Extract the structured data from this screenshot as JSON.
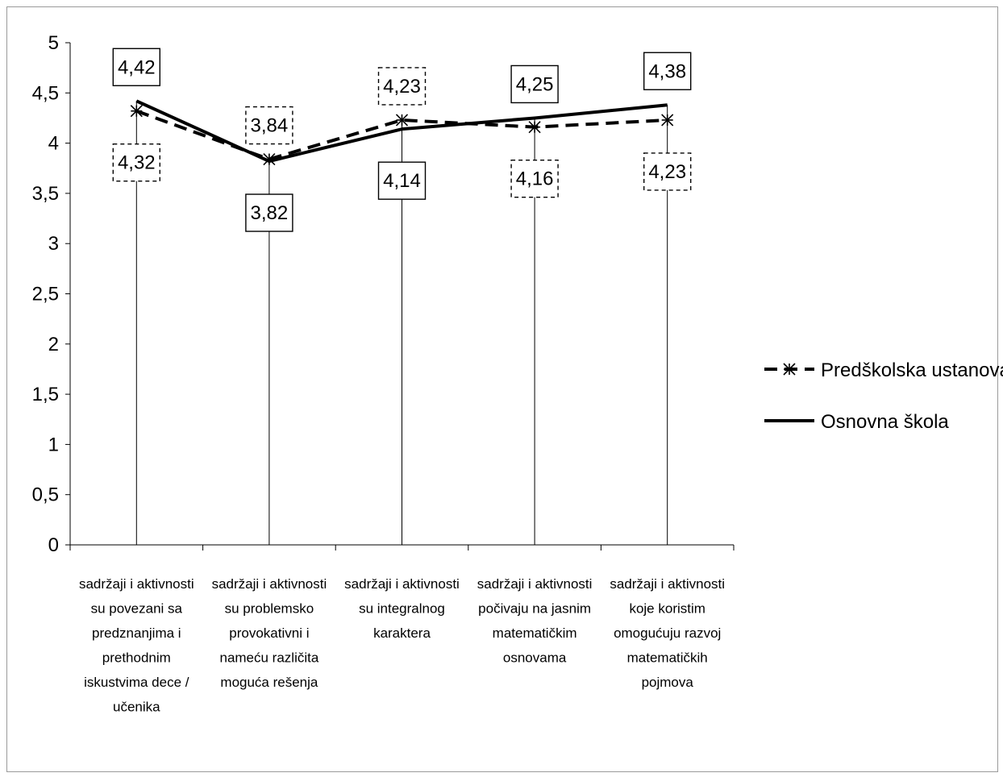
{
  "chart_data": {
    "type": "line",
    "ylim": [
      0,
      5
    ],
    "y_ticks": [
      "0",
      "0,5",
      "1",
      "1,5",
      "2",
      "2,5",
      "3",
      "3,5",
      "4",
      "4,5",
      "5"
    ],
    "y_tick_values": [
      0,
      0.5,
      1,
      1.5,
      2,
      2.5,
      3,
      3.5,
      4,
      4.5,
      5
    ],
    "grid": false,
    "legend_position": "right",
    "categories": [
      [
        "sadržaji i aktivnosti",
        "su povezani sa",
        "predznanjima i",
        "prethodnim",
        "iskustvima dece /",
        "učenika"
      ],
      [
        "sadržaji i aktivnosti",
        "su problemsko",
        "provokativni i",
        "nameću različita",
        "moguća rešenja"
      ],
      [
        "sadržaji i aktivnosti",
        "su integralnog",
        "karaktera"
      ],
      [
        "sadržaji i aktivnosti",
        "počivaju na jasnim",
        "matematičkim",
        "osnovama"
      ],
      [
        "sadržaji i aktivnosti",
        "koje koristim",
        "omogućuju razvoj",
        "matematičkih",
        "pojmova"
      ]
    ],
    "series": [
      {
        "name": "Predškolska ustanova",
        "style": "dashed",
        "marker": "asterisk",
        "color": "#000000",
        "values": [
          4.32,
          3.84,
          4.23,
          4.16,
          4.23
        ],
        "labels": [
          "4,32",
          "3,84",
          "4,23",
          "4,16",
          "4,23"
        ],
        "label_box": "dashed"
      },
      {
        "name": "Osnovna škola",
        "style": "solid",
        "marker": "none",
        "color": "#000000",
        "values": [
          4.42,
          3.82,
          4.14,
          4.25,
          4.38
        ],
        "labels": [
          "4,42",
          "3,82",
          "4,14",
          "4,25",
          "4,38"
        ],
        "label_box": "solid"
      }
    ]
  }
}
